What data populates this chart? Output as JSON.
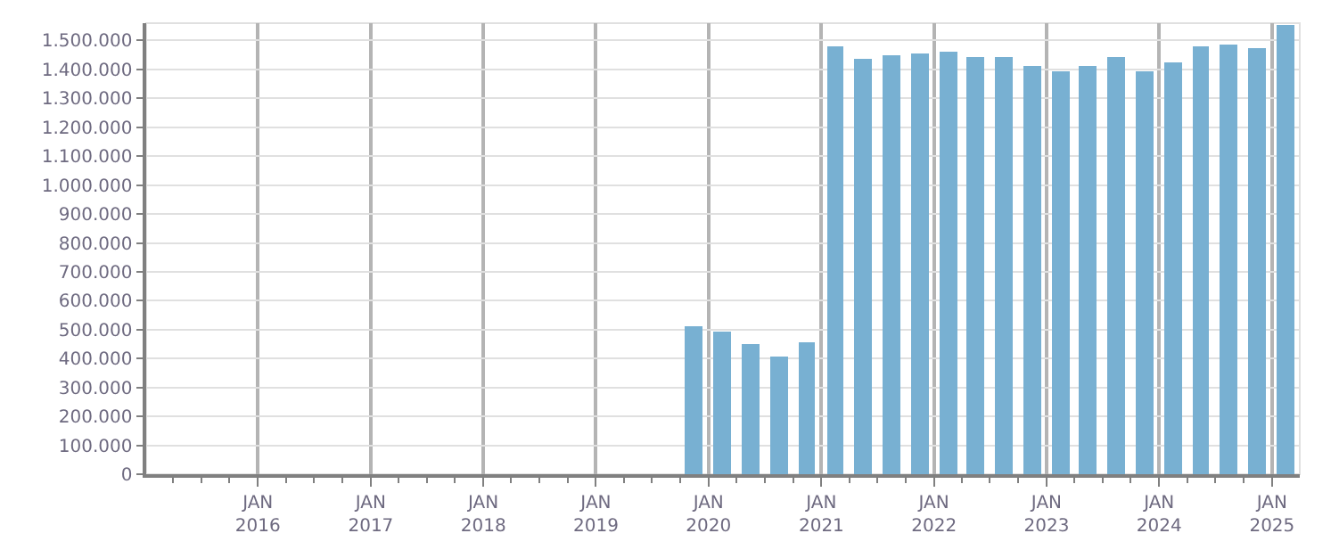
{
  "chart_data": {
    "type": "bar",
    "x": [
      "2019-11-15",
      "2020-02-15",
      "2020-05-15",
      "2020-08-15",
      "2020-11-15",
      "2021-02-15",
      "2021-05-15",
      "2021-08-15",
      "2021-11-15",
      "2022-02-15",
      "2022-05-15",
      "2022-08-15",
      "2022-11-15",
      "2023-02-15",
      "2023-05-15",
      "2023-08-15",
      "2023-11-15",
      "2024-02-15",
      "2024-05-15",
      "2024-08-15",
      "2024-11-15",
      "2025-02-15"
    ],
    "values": [
      514000,
      496000,
      450000,
      409000,
      455000,
      1479000,
      1438000,
      1449000,
      1455000,
      1461000,
      1444000,
      1444000,
      1409000,
      1391000,
      1409000,
      1444000,
      1391000,
      1426000,
      1479000,
      1484000,
      1473000,
      1554000
    ],
    "color": "#78b0d2",
    "xlim": [
      "2015-01-04",
      "2025-04-01"
    ],
    "xticks": [
      {
        "value": "2015-04-01",
        "label": null
      },
      {
        "value": "2015-07-01",
        "label": null
      },
      {
        "value": "2015-10-01",
        "label": null
      },
      {
        "value": "2016-01-01",
        "label": "JAN\n2016"
      },
      {
        "value": "2016-04-01",
        "label": null
      },
      {
        "value": "2016-07-01",
        "label": null
      },
      {
        "value": "2016-10-01",
        "label": null
      },
      {
        "value": "2017-01-01",
        "label": "JAN\n2017"
      },
      {
        "value": "2017-04-01",
        "label": null
      },
      {
        "value": "2017-07-01",
        "label": null
      },
      {
        "value": "2017-10-01",
        "label": null
      },
      {
        "value": "2018-01-01",
        "label": "JAN\n2018"
      },
      {
        "value": "2018-04-01",
        "label": null
      },
      {
        "value": "2018-07-01",
        "label": null
      },
      {
        "value": "2018-10-01",
        "label": null
      },
      {
        "value": "2019-01-01",
        "label": "JAN\n2019"
      },
      {
        "value": "2019-04-01",
        "label": null
      },
      {
        "value": "2019-07-01",
        "label": null
      },
      {
        "value": "2019-10-01",
        "label": null
      },
      {
        "value": "2020-01-01",
        "label": "JAN\n2020"
      },
      {
        "value": "2020-04-01",
        "label": null
      },
      {
        "value": "2020-07-01",
        "label": null
      },
      {
        "value": "2020-10-01",
        "label": null
      },
      {
        "value": "2021-01-01",
        "label": "JAN\n2021"
      },
      {
        "value": "2021-04-01",
        "label": null
      },
      {
        "value": "2021-07-01",
        "label": null
      },
      {
        "value": "2021-10-01",
        "label": null
      },
      {
        "value": "2022-01-01",
        "label": "JAN\n2022"
      },
      {
        "value": "2022-04-01",
        "label": null
      },
      {
        "value": "2022-07-01",
        "label": null
      },
      {
        "value": "2022-10-01",
        "label": null
      },
      {
        "value": "2023-01-01",
        "label": "JAN\n2023"
      },
      {
        "value": "2023-04-01",
        "label": null
      },
      {
        "value": "2023-07-01",
        "label": null
      },
      {
        "value": "2023-10-01",
        "label": null
      },
      {
        "value": "2024-01-01",
        "label": "JAN\n2024"
      },
      {
        "value": "2024-04-01",
        "label": null
      },
      {
        "value": "2024-07-01",
        "label": null
      },
      {
        "value": "2024-10-01",
        "label": null
      },
      {
        "value": "2025-01-01",
        "label": "JAN\n2025"
      }
    ],
    "ylim": [
      0,
      1560000
    ],
    "yticks": [
      0,
      {
        "value": 100000,
        "label": "100.000"
      },
      {
        "value": 200000,
        "label": "200.000"
      },
      {
        "value": 300000,
        "label": "300.000"
      },
      {
        "value": 400000,
        "label": "400.000"
      },
      {
        "value": 500000,
        "label": "500.000"
      },
      {
        "value": 600000,
        "label": "600.000"
      },
      {
        "value": 700000,
        "label": "700.000"
      },
      {
        "value": 800000,
        "label": "800.000"
      },
      {
        "value": 900000,
        "label": "900.000"
      },
      {
        "value": 1000000,
        "label": "1.000.000"
      },
      {
        "value": 1100000,
        "label": "1.100.000"
      },
      {
        "value": 1200000,
        "label": "1.200.000"
      },
      {
        "value": 1300000,
        "label": "1.300.000"
      },
      {
        "value": 1400000,
        "label": "1.400.000"
      },
      {
        "value": 1500000,
        "label": "1.500.000"
      }
    ],
    "grid": true
  }
}
